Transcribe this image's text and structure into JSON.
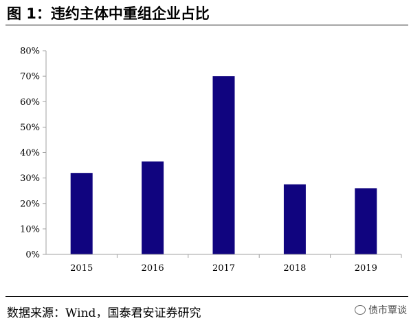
{
  "title": "图 1：违约主体中重组企业占比",
  "source": "数据来源：Wind，国泰君安证券研究",
  "watermark": "债市覃谈",
  "colors": {
    "bar": "#10047f",
    "axis": "#a0a0a0"
  },
  "chart_data": {
    "type": "bar",
    "categories": [
      "2015",
      "2016",
      "2017",
      "2018",
      "2019"
    ],
    "values": [
      32,
      36.5,
      70,
      27.5,
      26
    ],
    "ylim": [
      0,
      80
    ],
    "yticks": [
      0,
      10,
      20,
      30,
      40,
      50,
      60,
      70,
      80
    ],
    "ytick_labels": [
      "0%",
      "10%",
      "20%",
      "30%",
      "40%",
      "50%",
      "60%",
      "70%",
      "80%"
    ],
    "grid": false,
    "legend": "none"
  }
}
